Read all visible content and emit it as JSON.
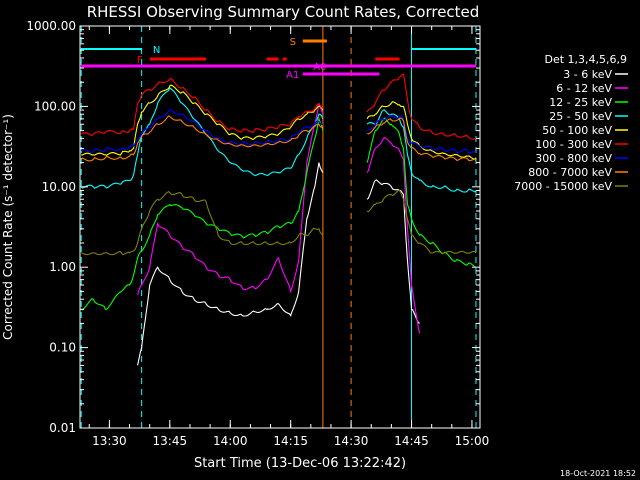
{
  "chart_data": {
    "type": "line",
    "title": "RHESSI Observing Summary Count Rates, Corrected",
    "xlabel": "Start Time (13-Dec-06 13:22:42)",
    "ylabel": "Corrected Count Rate (s⁻¹ detector⁻¹)",
    "y_scale": "log",
    "ylim": [
      0.01,
      1000
    ],
    "xlim": [
      "13:22:42",
      "15:02:00"
    ],
    "x_ticks": [
      "13:30",
      "13:45",
      "14:00",
      "14:15",
      "14:30",
      "14:45",
      "15:00"
    ],
    "y_ticks": [
      "0.01",
      "0.10",
      "1.00",
      "10.00",
      "100.00",
      "1000.00"
    ],
    "legend_title": "Det 1,3,4,5,6,9",
    "legend_placement": "right",
    "timestamp": "18-Oct-2021 18:52",
    "x": [
      "13:23",
      "13:26",
      "13:29",
      "13:33",
      "13:35",
      "13:36",
      "13:37",
      "13:38",
      "13:40",
      "13:42",
      "13:45",
      "13:48",
      "13:51",
      "13:54",
      "13:57",
      "14:00",
      "14:03",
      "14:06",
      "14:09",
      "14:12",
      "14:15",
      "14:17",
      "14:19",
      "14:21",
      "14:22",
      "14:23",
      "14:33",
      "14:34",
      "14:36",
      "14:38",
      "14:40",
      "14:42",
      "14:43",
      "14:44",
      "14:45",
      "14:47",
      "14:50",
      "14:53",
      "14:56",
      "14:59",
      "15:01"
    ],
    "series": [
      {
        "name": "3 - 6 keV",
        "color": "#ffffff",
        "values": [
          null,
          null,
          null,
          null,
          null,
          null,
          0.06,
          0.1,
          0.6,
          1.0,
          0.7,
          0.5,
          0.4,
          0.35,
          0.3,
          0.27,
          0.25,
          0.28,
          0.3,
          0.35,
          0.25,
          0.5,
          4,
          10,
          20,
          15,
          null,
          7,
          12,
          11,
          10,
          9,
          8,
          1.2,
          0.3,
          0.2,
          null,
          null,
          null,
          null,
          null
        ]
      },
      {
        "name": "6 - 12 keV",
        "color": "#ff00ff",
        "values": [
          null,
          null,
          null,
          null,
          null,
          null,
          0.45,
          0.6,
          1.0,
          3.5,
          2.5,
          1.8,
          1.4,
          1.0,
          0.8,
          0.7,
          0.55,
          0.55,
          0.7,
          1.3,
          0.5,
          1.2,
          20,
          60,
          110,
          80,
          null,
          15,
          30,
          40,
          35,
          28,
          22,
          3.0,
          0.6,
          0.15,
          null,
          null,
          null,
          null,
          null
        ]
      },
      {
        "name": "12 - 25 keV",
        "color": "#00ff00",
        "values": [
          0.3,
          0.4,
          0.3,
          0.5,
          0.6,
          0.8,
          1.3,
          1.6,
          2.5,
          4.5,
          6.0,
          5.5,
          4.5,
          3.5,
          3.0,
          2.6,
          2.4,
          2.5,
          2.7,
          3.2,
          3.5,
          5,
          15,
          40,
          70,
          50,
          null,
          20,
          50,
          70,
          60,
          45,
          30,
          6,
          4,
          2.5,
          2.0,
          1.5,
          1.2,
          1.1,
          1.0
        ]
      },
      {
        "name": "25 - 50 keV",
        "color": "#00ffff",
        "values": [
          10,
          10,
          10,
          11,
          12,
          14,
          25,
          45,
          60,
          110,
          170,
          110,
          70,
          45,
          28,
          20,
          16,
          14,
          14,
          15,
          17,
          25,
          40,
          60,
          80,
          70,
          null,
          60,
          60,
          90,
          80,
          70,
          55,
          25,
          15,
          12,
          10,
          10,
          9,
          9,
          9
        ]
      },
      {
        "name": "50 - 100 keV",
        "color": "#ffff00",
        "values": [
          25,
          25,
          25,
          26,
          28,
          30,
          60,
          85,
          110,
          135,
          180,
          150,
          110,
          80,
          60,
          45,
          40,
          40,
          42,
          45,
          55,
          70,
          80,
          90,
          100,
          90,
          null,
          70,
          80,
          100,
          110,
          105,
          100,
          60,
          40,
          32,
          28,
          26,
          25,
          24,
          23
        ]
      },
      {
        "name": "100 - 300 keV",
        "color": "#ff0000",
        "values": [
          45,
          45,
          48,
          48,
          50,
          52,
          110,
          140,
          160,
          190,
          220,
          170,
          130,
          90,
          65,
          52,
          50,
          50,
          52,
          56,
          60,
          75,
          85,
          95,
          105,
          95,
          null,
          85,
          110,
          160,
          200,
          230,
          250,
          120,
          70,
          55,
          48,
          45,
          44,
          42,
          40
        ]
      },
      {
        "name": "300 - 800 keV",
        "color": "#0000ff",
        "values": [
          28,
          28,
          29,
          30,
          31,
          32,
          40,
          45,
          55,
          70,
          90,
          80,
          65,
          50,
          40,
          36,
          35,
          35,
          36,
          38,
          40,
          48,
          55,
          60,
          65,
          60,
          null,
          50,
          60,
          70,
          75,
          75,
          70,
          40,
          35,
          32,
          30,
          29,
          28,
          28,
          27
        ]
      },
      {
        "name": "800 - 7000 keV",
        "color": "#ff8000",
        "values": [
          22,
          22,
          23,
          23,
          24,
          25,
          35,
          42,
          48,
          60,
          75,
          65,
          55,
          45,
          38,
          34,
          33,
          33,
          34,
          36,
          38,
          44,
          50,
          56,
          60,
          56,
          null,
          46,
          55,
          62,
          68,
          70,
          66,
          36,
          30,
          26,
          24,
          23,
          22,
          22,
          21
        ]
      },
      {
        "name": "7000 - 15000 keV",
        "color": "#808000",
        "values": [
          1.5,
          1.5,
          1.5,
          1.5,
          1.5,
          1.6,
          2.0,
          3.0,
          5.0,
          7.0,
          8.5,
          8.0,
          7.0,
          6.5,
          2.5,
          2.0,
          2.0,
          2.0,
          2.0,
          2.0,
          2.0,
          2.5,
          2.5,
          3,
          3,
          2.5,
          null,
          5,
          6,
          7,
          8,
          9,
          7,
          4,
          2.5,
          2,
          1.5,
          1.5,
          1.5,
          1.5,
          1.5
        ]
      }
    ],
    "flags": [
      {
        "label": "N",
        "color": "#00ffff",
        "segments": [
          [
            "13:23",
            "13:38"
          ],
          [
            "14:45",
            "15:01"
          ]
        ]
      },
      {
        "label": "F",
        "color": "#ff0000",
        "segments": [
          [
            "13:40",
            "13:54"
          ],
          [
            "14:09",
            "14:12"
          ],
          [
            "14:13",
            "14:14"
          ],
          [
            "14:36",
            "14:42"
          ]
        ]
      },
      {
        "label": "A0",
        "color": "#ff00ff",
        "segments": [
          [
            "13:23",
            "15:01"
          ]
        ]
      },
      {
        "label": "A1",
        "color": "#ff00ff",
        "segments": [
          [
            "14:18",
            "14:37"
          ]
        ]
      },
      {
        "label": "S",
        "color": "#ff8000",
        "segments": [
          [
            "14:18",
            "14:24"
          ]
        ]
      }
    ],
    "vertical_lines": [
      {
        "time": "13:23",
        "color": "#00ffff",
        "style": "dashed"
      },
      {
        "time": "13:38",
        "color": "#00ffff",
        "style": "dashed"
      },
      {
        "time": "14:23",
        "color": "#ff8000",
        "style": "solid"
      },
      {
        "time": "14:30",
        "color": "#ff8000",
        "style": "dashed"
      },
      {
        "time": "14:45",
        "color": "#00ffff",
        "style": "solid"
      },
      {
        "time": "15:01",
        "color": "#00ffff",
        "style": "dashed"
      }
    ]
  }
}
